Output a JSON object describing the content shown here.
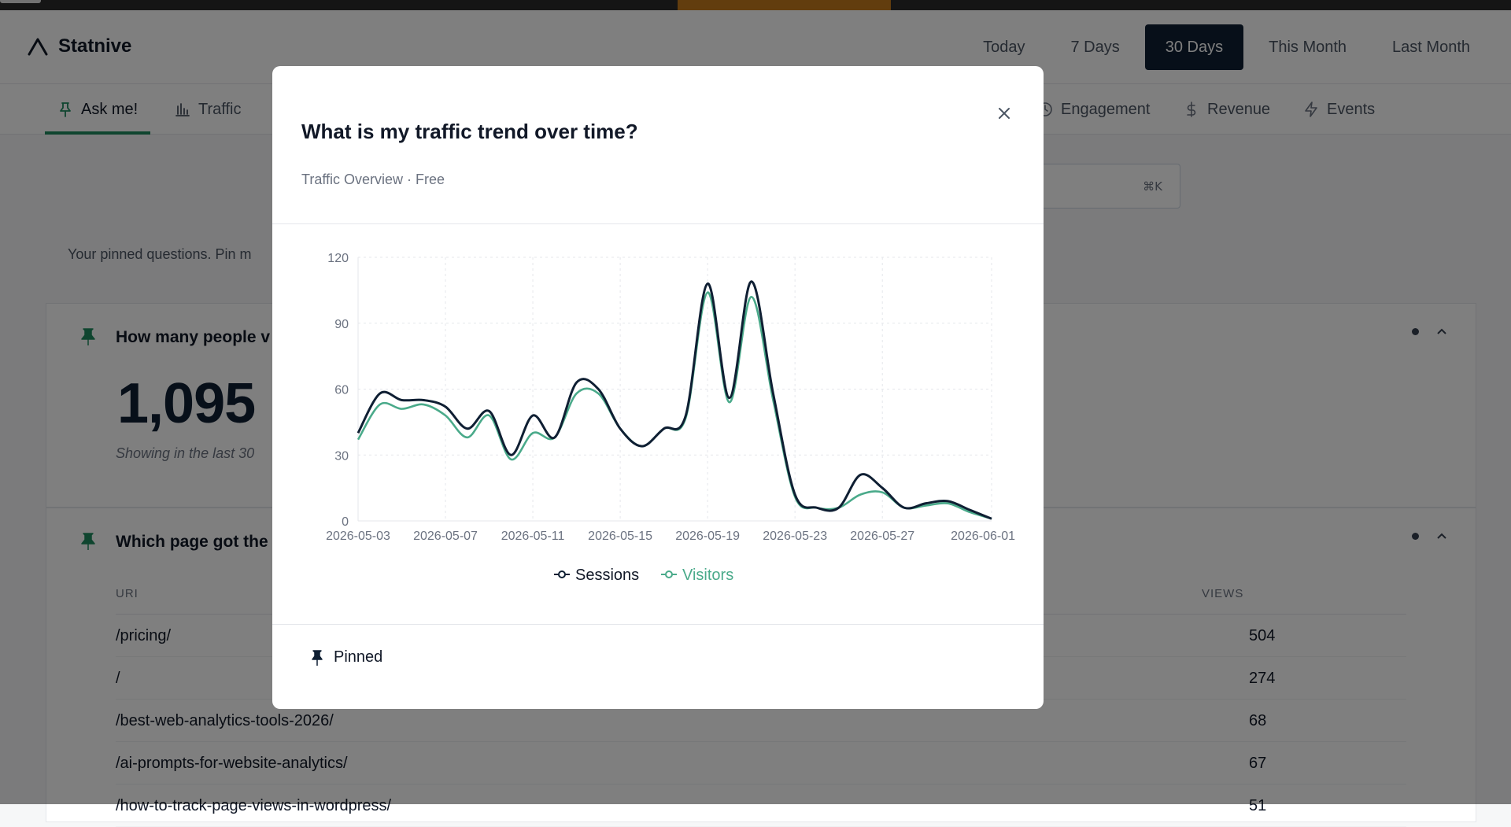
{
  "app": {
    "name": "Statnive"
  },
  "date_ranges": [
    {
      "label": "Today",
      "active": false
    },
    {
      "label": "7 Days",
      "active": false
    },
    {
      "label": "30 Days",
      "active": true
    },
    {
      "label": "This Month",
      "active": false
    },
    {
      "label": "Last Month",
      "active": false
    }
  ],
  "tabs": [
    {
      "label": "Ask me!",
      "icon": "pin-icon",
      "active": true
    },
    {
      "label": "Traffic",
      "icon": "bar-chart-icon",
      "active": false
    },
    {
      "label": "Engagement",
      "icon": "clock-icon",
      "active": false
    },
    {
      "label": "Revenue",
      "icon": "dollar-icon",
      "active": false
    },
    {
      "label": "Events",
      "icon": "bolt-icon",
      "active": false
    }
  ],
  "search": {
    "shortcut": "⌘K"
  },
  "pinned_intro": "Your pinned questions. Pin m",
  "cards": {
    "visitors": {
      "title": "How many people v",
      "value": "1,095",
      "caption": "Showing in the last 30"
    },
    "top_pages": {
      "title": "Which page got the",
      "col_uri": "URI",
      "col_views": "VIEWS",
      "rows": [
        {
          "uri": "/pricing/",
          "views": "504"
        },
        {
          "uri": "/",
          "views": "274"
        },
        {
          "uri": "/best-web-analytics-tools-2026/",
          "views": "68"
        },
        {
          "uri": "/ai-prompts-for-website-analytics/",
          "views": "67"
        },
        {
          "uri": "/how-to-track-page-views-in-wordpress/",
          "views": "51"
        }
      ]
    }
  },
  "modal": {
    "title": "What is my traffic trend over time?",
    "subtitle": "Traffic Overview · Free",
    "pinned_label": "Pinned"
  },
  "chart_data": {
    "type": "line",
    "x_tick_labels": [
      "2026-05-03",
      "2026-05-07",
      "2026-05-11",
      "2026-05-15",
      "2026-05-19",
      "2026-05-23",
      "2026-05-27",
      "2026-06-01"
    ],
    "y_tick_labels": [
      "0",
      "30",
      "60",
      "90",
      "120"
    ],
    "ylim": [
      0,
      120
    ],
    "grid": true,
    "legend_position": "bottom-center",
    "x": [
      "2026-05-03",
      "2026-05-04",
      "2026-05-05",
      "2026-05-06",
      "2026-05-07",
      "2026-05-08",
      "2026-05-09",
      "2026-05-10",
      "2026-05-11",
      "2026-05-12",
      "2026-05-13",
      "2026-05-14",
      "2026-05-15",
      "2026-05-16",
      "2026-05-17",
      "2026-05-18",
      "2026-05-19",
      "2026-05-20",
      "2026-05-21",
      "2026-05-22",
      "2026-05-23",
      "2026-05-24",
      "2026-05-25",
      "2026-05-26",
      "2026-05-27",
      "2026-05-28",
      "2026-05-29",
      "2026-05-30",
      "2026-05-31",
      "2026-06-01"
    ],
    "series": [
      {
        "name": "Sessions",
        "color": "#0f1f33",
        "values": [
          40,
          58,
          55,
          55,
          52,
          42,
          50,
          30,
          48,
          38,
          63,
          60,
          42,
          34,
          42,
          48,
          108,
          56,
          109,
          58,
          12,
          6,
          6,
          21,
          15,
          6,
          8,
          9,
          5,
          1
        ]
      },
      {
        "name": "Visitors",
        "color": "#4aaa8a",
        "values": [
          37,
          53,
          51,
          53,
          48,
          38,
          48,
          28,
          40,
          38,
          58,
          58,
          42,
          34,
          42,
          47,
          104,
          54,
          102,
          55,
          11,
          6,
          6,
          12,
          13,
          6,
          7,
          8,
          4,
          1
        ]
      }
    ]
  },
  "colors": {
    "primary": "#0f1f33",
    "accent": "#1f8a5f",
    "visitors": "#4aaa8a"
  }
}
